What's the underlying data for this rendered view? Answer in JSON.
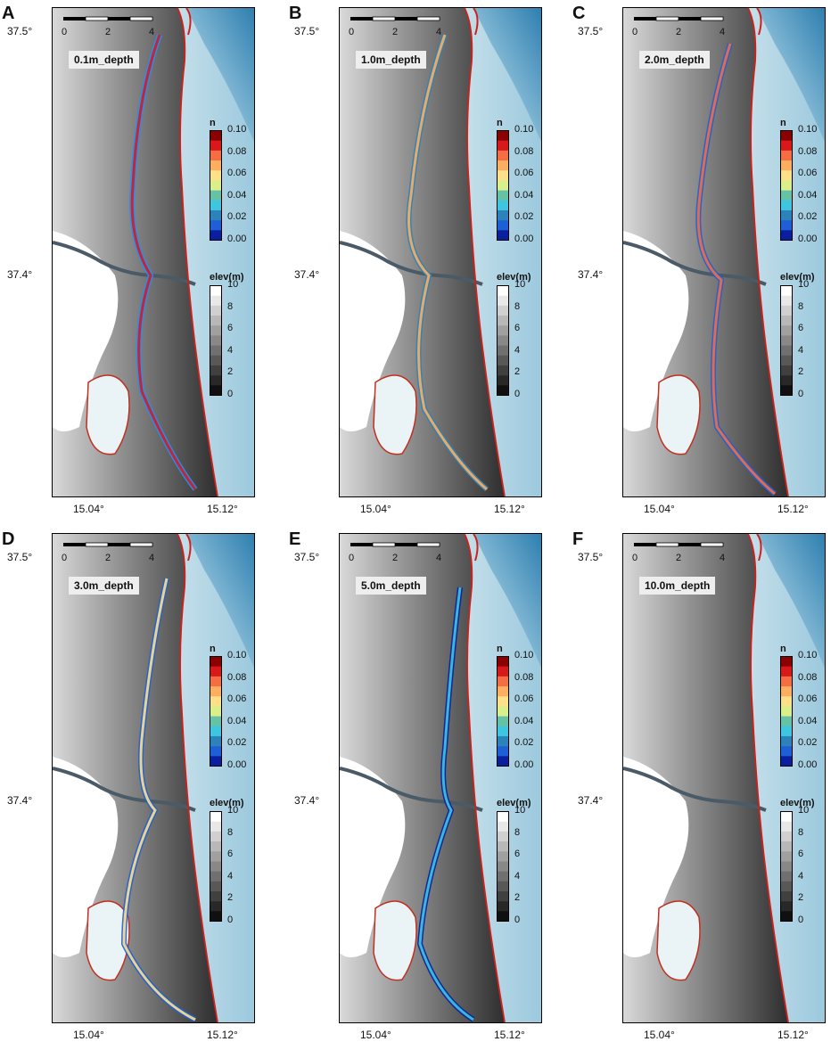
{
  "scale_ticks": [
    "0",
    "2",
    "4"
  ],
  "lat_labels": [
    "37.5°",
    "37.4°"
  ],
  "lon_labels": [
    "15.04°",
    "15.12°"
  ],
  "n_colorbar": {
    "title": "n",
    "ticks": [
      "0.10",
      "0.08",
      "0.06",
      "0.04",
      "0.02",
      "0.00"
    ],
    "colors": [
      "#8b0000",
      "#d7191c",
      "#f46d43",
      "#fdae61",
      "#fee08b",
      "#d9ef8b",
      "#66c2a5",
      "#3ec6e0",
      "#2b83ba",
      "#1f5fd6",
      "#0a1f9e"
    ]
  },
  "elev_colorbar": {
    "title": "elev(m)",
    "ticks": [
      "10",
      "8",
      "6",
      "4",
      "2",
      "0"
    ],
    "colors": [
      "#ffffff",
      "#e8e8e8",
      "#d0d0d0",
      "#b8b8b8",
      "#a0a0a0",
      "#888888",
      "#707070",
      "#585858",
      "#404040",
      "#282828",
      "#101010"
    ]
  },
  "panels": [
    {
      "letter": "A",
      "depth": "0.1m_depth"
    },
    {
      "letter": "B",
      "depth": "1.0m_depth"
    },
    {
      "letter": "C",
      "depth": "2.0m_depth"
    },
    {
      "letter": "D",
      "depth": "3.0m_depth"
    },
    {
      "letter": "E",
      "depth": "5.0m_depth"
    },
    {
      "letter": "F",
      "depth": "10.0m_depth"
    }
  ],
  "colors": {
    "sea": "#cfe6ec",
    "sea_deep": "#4a93bd",
    "land_dark": "#3a3a3a",
    "land_light": "#bdbdbd",
    "coast_line": "#d0201a"
  }
}
